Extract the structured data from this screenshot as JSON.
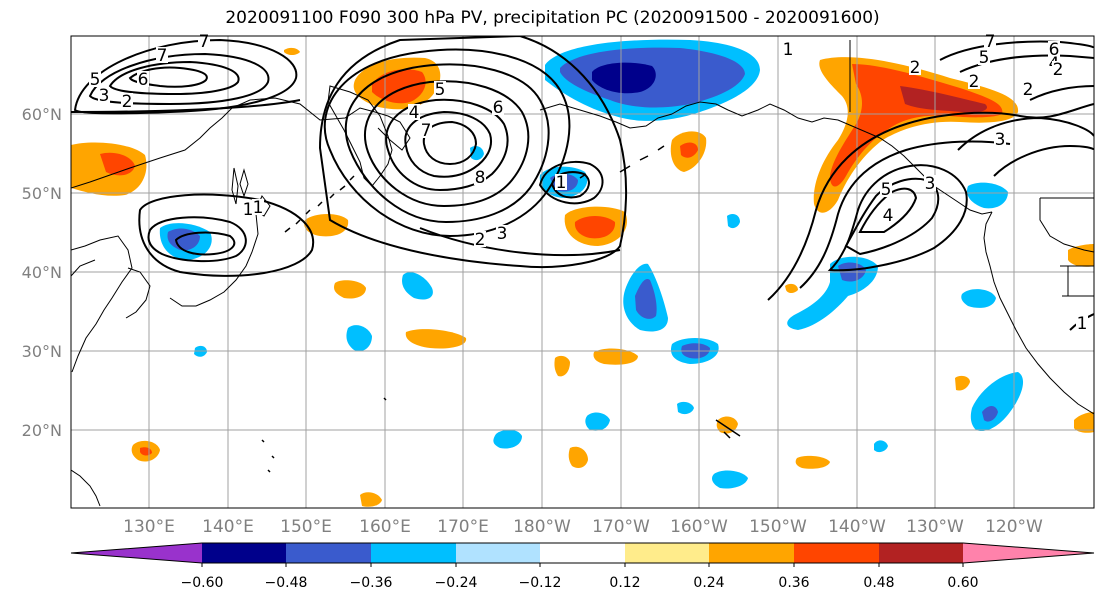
{
  "title": "2020091100 F090 300 hPa PV, precipitation PC (2020091500 - 2020091600)",
  "lat_labels": [
    "60°N",
    "50°N",
    "40°N",
    "30°N",
    "20°N"
  ],
  "lon_labels": [
    "130°E",
    "140°E",
    "150°E",
    "160°E",
    "170°E",
    "180°W",
    "170°W",
    "160°W",
    "150°W",
    "140°W",
    "130°W",
    "120°W"
  ],
  "colorbar": {
    "colors": [
      "#9932cc",
      "#00008b",
      "#3a5bcd",
      "#00bfff",
      "#b0e2ff",
      "#ffffff",
      "#ffec8b",
      "#ffa500",
      "#ff4500",
      "#b22222",
      "#ff82ab"
    ],
    "ticks": [
      "−0.60",
      "−0.48",
      "−0.36",
      "−0.24",
      "−0.12",
      "0.12",
      "0.24",
      "0.36",
      "0.48",
      "0.60"
    ]
  },
  "contour_labels": [
    "7",
    "6",
    "5",
    "3",
    "2",
    "7",
    "6",
    "1",
    "4",
    "5",
    "7",
    "8",
    "2",
    "3",
    "1",
    "1",
    "2",
    "2",
    "5",
    "3",
    "4",
    "7",
    "6",
    "5",
    "4",
    "3",
    "2",
    "1",
    "2",
    "1"
  ]
}
